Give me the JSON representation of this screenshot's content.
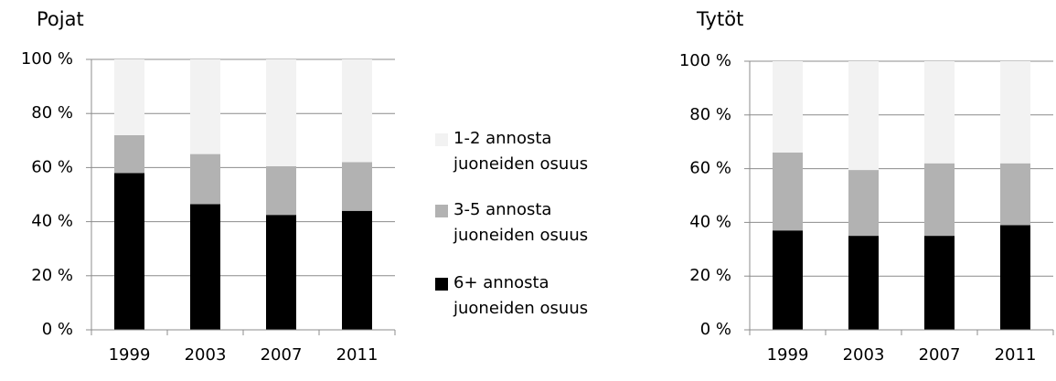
{
  "chart_data": [
    {
      "type": "bar",
      "stacked": true,
      "title": "Pojat",
      "categories": [
        "1999",
        "2003",
        "2007",
        "2011"
      ],
      "series": [
        {
          "name": "6+ annosta juoneiden osuus",
          "color": "#000000",
          "values": [
            58,
            46.5,
            42.5,
            44
          ]
        },
        {
          "name": "3-5 annosta juoneiden osuus",
          "color": "#b2b2b2",
          "values": [
            14,
            18.5,
            18,
            18
          ]
        },
        {
          "name": "1-2 annosta juoneiden osuus",
          "color": "#f2f2f2",
          "values": [
            28,
            35,
            39.5,
            38
          ]
        }
      ],
      "ylim": [
        0,
        100
      ],
      "yticks": [
        {
          "value": 0,
          "label": "0 %"
        },
        {
          "value": 20,
          "label": "20 %"
        },
        {
          "value": 40,
          "label": "40 %"
        },
        {
          "value": 60,
          "label": "60 %"
        },
        {
          "value": 80,
          "label": "80 %"
        },
        {
          "value": 100,
          "label": "100 %"
        }
      ],
      "grid": true
    },
    {
      "type": "bar",
      "stacked": true,
      "title": "Tytöt",
      "categories": [
        "1999",
        "2003",
        "2007",
        "2011"
      ],
      "series": [
        {
          "color": "#000000",
          "values": [
            37,
            35,
            35,
            39
          ]
        },
        {
          "color": "#b2b2b2",
          "values": [
            29,
            24.5,
            27,
            23
          ]
        },
        {
          "color": "#f2f2f2",
          "values": [
            34,
            40.5,
            38,
            38
          ]
        }
      ],
      "ylim": [
        0,
        100
      ],
      "yticks": [
        {
          "value": 0,
          "label": "0 %"
        },
        {
          "value": 20,
          "label": "20 %"
        },
        {
          "value": 40,
          "label": "40 %"
        },
        {
          "value": 60,
          "label": "60 %"
        },
        {
          "value": 80,
          "label": "80 %"
        },
        {
          "value": 100,
          "label": "100 %"
        }
      ],
      "grid": true
    }
  ]
}
